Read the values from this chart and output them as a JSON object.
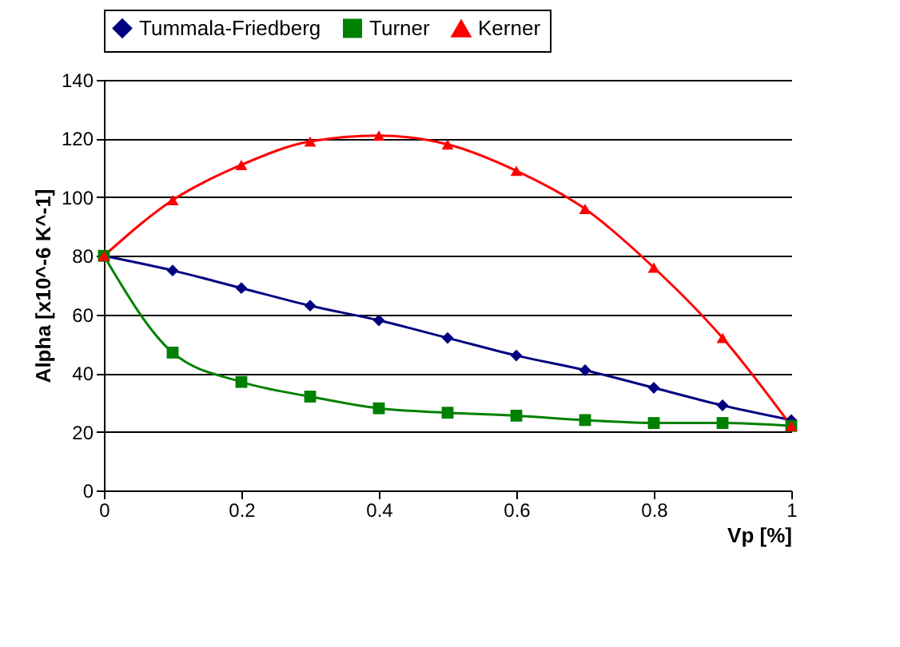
{
  "chart_data": {
    "type": "line",
    "xlabel": "Vp [%]",
    "ylabel": "Alpha [x10^-6 K^-1]",
    "x": [
      0,
      0.1,
      0.2,
      0.3,
      0.4,
      0.5,
      0.6,
      0.7,
      0.8,
      0.9,
      1
    ],
    "series": [
      {
        "name": "Tummala-Friedberg",
        "color": "#000080",
        "marker": "diamond",
        "values": [
          80,
          75,
          69,
          63,
          58,
          52,
          46,
          41,
          35,
          29,
          24
        ]
      },
      {
        "name": "Turner",
        "color": "#008000",
        "marker": "square",
        "values": [
          80,
          47,
          37,
          32,
          28,
          26.5,
          25.5,
          24,
          23,
          23,
          22
        ]
      },
      {
        "name": "Kerner",
        "color": "#ff0000",
        "marker": "triangle",
        "values": [
          80,
          99,
          111,
          119,
          121,
          118,
          109,
          96,
          76,
          52,
          22
        ]
      }
    ],
    "xlim": [
      0,
      1
    ],
    "xticks": [
      0,
      0.2,
      0.4,
      0.6,
      0.8,
      1
    ],
    "ylim": [
      0,
      140
    ],
    "yticks": [
      0,
      20,
      40,
      60,
      80,
      100,
      120,
      140
    ],
    "grid": "y",
    "legend": "top"
  }
}
